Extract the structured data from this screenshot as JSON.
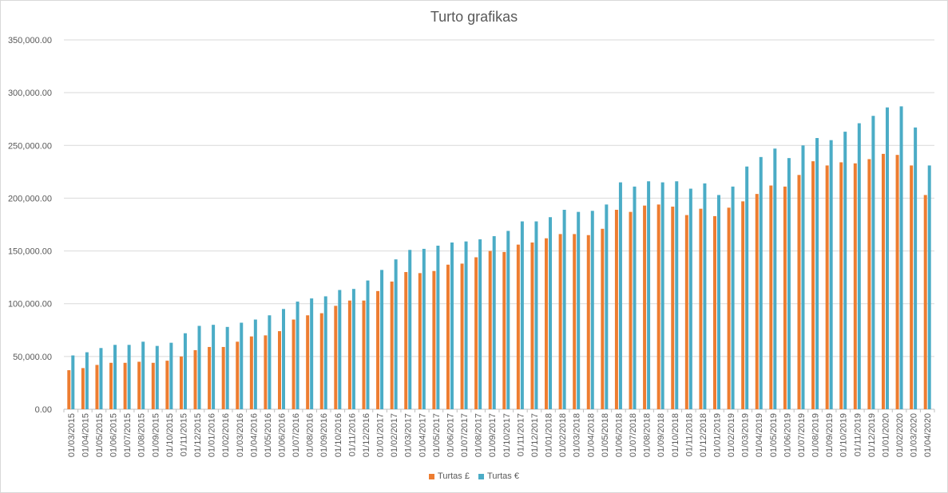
{
  "chart_data": {
    "type": "bar",
    "title": "Turto grafikas",
    "xlabel": "",
    "ylabel": "",
    "ylim": [
      0,
      350000
    ],
    "yticks": [
      0,
      50000,
      100000,
      150000,
      200000,
      250000,
      300000,
      350000
    ],
    "ytick_labels": [
      "0.00",
      "50,000.00",
      "100,000.00",
      "150,000.00",
      "200,000.00",
      "250,000.00",
      "300,000.00",
      "350,000.00"
    ],
    "grid": true,
    "legend_position": "bottom",
    "categories": [
      "01/03/2015",
      "01/04/2015",
      "01/05/2015",
      "01/06/2015",
      "01/07/2015",
      "01/08/2015",
      "01/09/2015",
      "01/10/2015",
      "01/11/2015",
      "01/12/2015",
      "01/01/2016",
      "01/02/2016",
      "01/03/2016",
      "01/04/2016",
      "01/05/2016",
      "01/06/2016",
      "01/07/2016",
      "01/08/2016",
      "01/09/2016",
      "01/10/2016",
      "01/11/2016",
      "01/12/2016",
      "01/01/2017",
      "01/02/2017",
      "01/03/2017",
      "01/04/2017",
      "01/05/2017",
      "01/06/2017",
      "01/07/2017",
      "01/08/2017",
      "01/09/2017",
      "01/10/2017",
      "01/11/2017",
      "01/12/2017",
      "01/01/2018",
      "01/02/2018",
      "01/03/2018",
      "01/04/2018",
      "01/05/2018",
      "01/06/2018",
      "01/07/2018",
      "01/08/2018",
      "01/09/2018",
      "01/10/2018",
      "01/11/2018",
      "01/12/2018",
      "01/01/2019",
      "01/02/2019",
      "01/03/2019",
      "01/04/2019",
      "01/05/2019",
      "01/06/2019",
      "01/07/2019",
      "01/08/2019",
      "01/09/2019",
      "01/10/2019",
      "01/11/2019",
      "01/12/2019",
      "01/01/2020",
      "01/02/2020",
      "01/03/2020",
      "01/04/2020"
    ],
    "series": [
      {
        "name": "Turtas £",
        "color": "#ED7D31",
        "values": [
          37000,
          39000,
          42000,
          44000,
          44000,
          45000,
          44000,
          46000,
          50000,
          56000,
          59000,
          59000,
          64000,
          69000,
          70000,
          74000,
          85000,
          89000,
          91000,
          98000,
          103000,
          103000,
          112000,
          121000,
          130000,
          129000,
          131000,
          137000,
          138000,
          144000,
          150000,
          149000,
          156000,
          158000,
          162000,
          166000,
          166000,
          165000,
          171000,
          189000,
          187000,
          193000,
          194000,
          192000,
          184000,
          190000,
          183000,
          191000,
          197000,
          204000,
          212000,
          211000,
          222000,
          235000,
          231000,
          234000,
          233000,
          237000,
          242000,
          241000,
          231000,
          203000
        ]
      },
      {
        "name": "Turtas €",
        "color": "#4BACC6",
        "values": [
          51000,
          54000,
          58000,
          61000,
          61000,
          64000,
          60000,
          63000,
          72000,
          79000,
          80000,
          78000,
          82000,
          85000,
          89000,
          95000,
          102000,
          105000,
          107000,
          113000,
          114000,
          122000,
          132000,
          142000,
          151000,
          152000,
          155000,
          158000,
          159000,
          161000,
          164000,
          169000,
          178000,
          178000,
          182000,
          189000,
          187000,
          188000,
          194000,
          215000,
          211000,
          216000,
          215000,
          216000,
          209000,
          214000,
          203000,
          211000,
          230000,
          239000,
          247000,
          238000,
          250000,
          257000,
          255000,
          263000,
          271000,
          278000,
          286000,
          287000,
          267000,
          231000
        ]
      }
    ]
  }
}
